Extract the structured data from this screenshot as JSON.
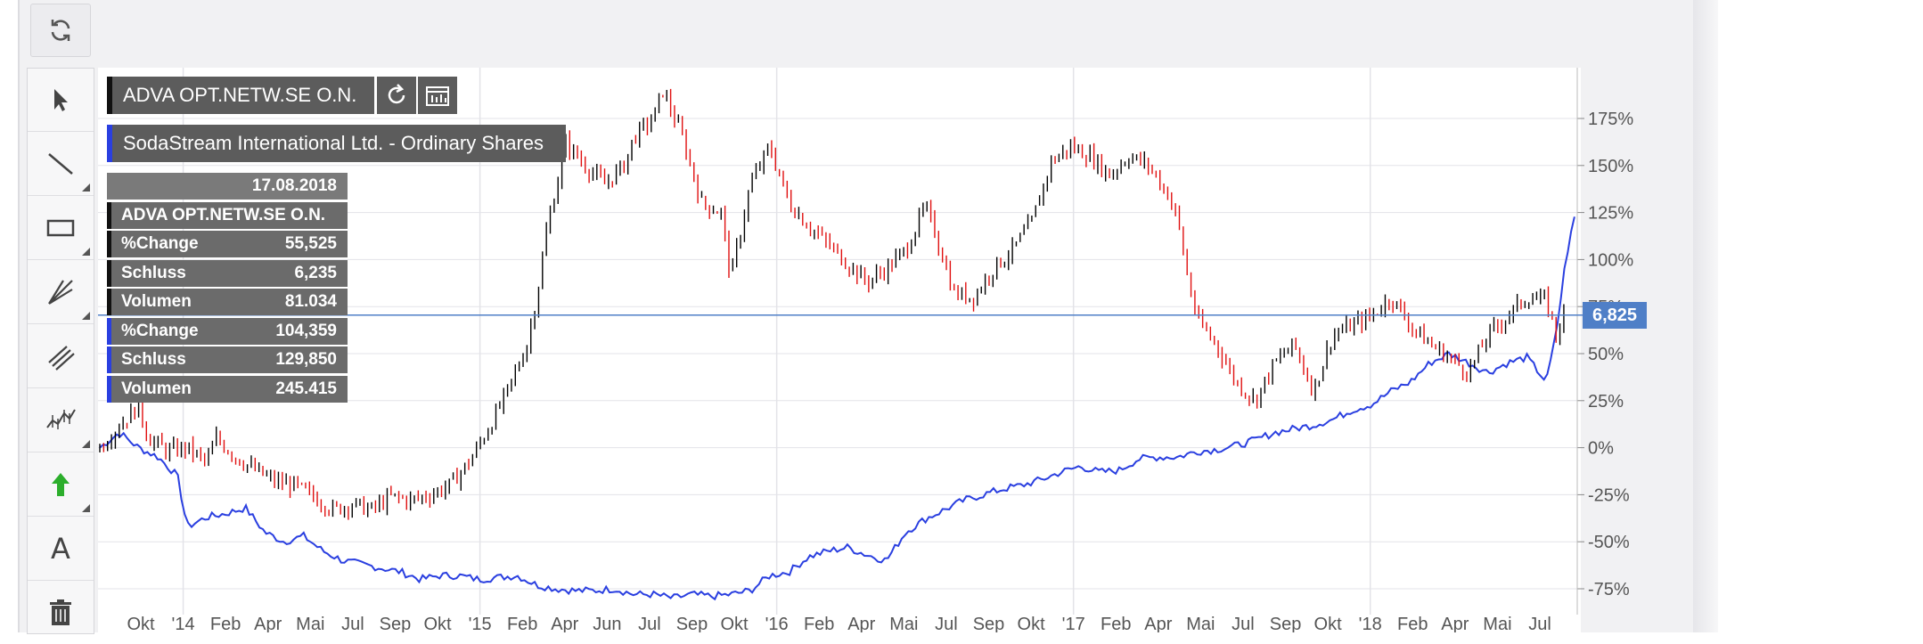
{
  "toolbar": {
    "refresh_icon": "refresh-icon",
    "tools": [
      {
        "name": "pointer-tool",
        "icon": "cursor-arrow-icon"
      },
      {
        "name": "line-tool",
        "icon": "line-icon"
      },
      {
        "name": "rectangle-tool",
        "icon": "rectangle-icon"
      },
      {
        "name": "fan-tool",
        "icon": "fan-lines-icon"
      },
      {
        "name": "parallel-lines-tool",
        "icon": "parallel-lines-icon"
      },
      {
        "name": "chart-type-tool",
        "icon": "candlestick-icon"
      },
      {
        "name": "arrow-tool",
        "icon": "green-arrow-up-icon"
      },
      {
        "name": "text-tool",
        "icon": "letter-a-icon",
        "label": "A"
      },
      {
        "name": "delete-tool",
        "icon": "trash-icon"
      }
    ]
  },
  "badges": {
    "primary": "ADVA OPT.NETW.SE O.N.",
    "secondary": "SodaStream International Ltd. - Ordinary Shares"
  },
  "info": {
    "date": "17.08.2018",
    "title": "ADVA OPT.NETW.SE O.N.",
    "rows_primary": [
      {
        "label": "%Change",
        "value": "55,525"
      },
      {
        "label": "Schluss",
        "value": "6,235"
      },
      {
        "label": "Volumen",
        "value": "81.034"
      }
    ],
    "rows_secondary": [
      {
        "label": "%Change",
        "value": "104,359"
      },
      {
        "label": "Schluss",
        "value": "129,850"
      },
      {
        "label": "Volumen",
        "value": "245.415"
      }
    ]
  },
  "last_price": "6,825",
  "colors": {
    "primary": "#1a1a1a",
    "secondary": "#2a3fe0",
    "up": "#000000",
    "down": "#e01010",
    "accent": "#4f7fc7"
  },
  "chart_data": {
    "type": "line",
    "ylim": [
      -85,
      200
    ],
    "y_ticks": [
      "175%",
      "150%",
      "125%",
      "100%",
      "75%",
      "50%",
      "25%",
      "0%",
      "-25%",
      "-50%",
      "-75%"
    ],
    "x_ticks": [
      "Okt",
      "'14",
      "Feb",
      "Apr",
      "Mai",
      "Jul",
      "Sep",
      "Okt",
      "'15",
      "Feb",
      "Apr",
      "Jun",
      "Jul",
      "Sep",
      "Okt",
      "'16",
      "Feb",
      "Apr",
      "Mai",
      "Jul",
      "Sep",
      "Okt",
      "'17",
      "Feb",
      "Apr",
      "Mai",
      "Jul",
      "Sep",
      "Okt",
      "'18",
      "Feb",
      "Apr",
      "Mai",
      "Jul"
    ],
    "series": [
      {
        "name": "ADVA OPT.NETW.SE O.N.",
        "style": "candles",
        "points": [
          [
            0,
            0
          ],
          [
            2,
            12
          ],
          [
            4,
            22
          ],
          [
            5,
            5
          ],
          [
            7,
            -2
          ],
          [
            9,
            0
          ],
          [
            11,
            -8
          ],
          [
            12,
            5
          ],
          [
            14,
            -5
          ],
          [
            16,
            -12
          ],
          [
            18,
            -18
          ],
          [
            20,
            -20
          ],
          [
            22,
            -26
          ],
          [
            24,
            -33
          ],
          [
            26,
            -30
          ],
          [
            28,
            -33
          ],
          [
            30,
            -26
          ],
          [
            32,
            -28
          ],
          [
            34,
            -25
          ],
          [
            36,
            -20
          ],
          [
            38,
            -8
          ],
          [
            40,
            10
          ],
          [
            42,
            30
          ],
          [
            44,
            55
          ],
          [
            45,
            80
          ],
          [
            46,
            115
          ],
          [
            48,
            162
          ],
          [
            50,
            150
          ],
          [
            52,
            140
          ],
          [
            54,
            150
          ],
          [
            55,
            165
          ],
          [
            57,
            175
          ],
          [
            58,
            190
          ],
          [
            60,
            165
          ],
          [
            62,
            130
          ],
          [
            64,
            125
          ],
          [
            65,
            90
          ],
          [
            67,
            140
          ],
          [
            69,
            160
          ],
          [
            71,
            130
          ],
          [
            73,
            118
          ],
          [
            75,
            108
          ],
          [
            77,
            98
          ],
          [
            79,
            88
          ],
          [
            81,
            95
          ],
          [
            83,
            105
          ],
          [
            85,
            128
          ],
          [
            86,
            115
          ],
          [
            88,
            82
          ],
          [
            90,
            80
          ],
          [
            92,
            95
          ],
          [
            94,
            105
          ],
          [
            96,
            120
          ],
          [
            98,
            152
          ],
          [
            100,
            160
          ],
          [
            102,
            155
          ],
          [
            104,
            145
          ],
          [
            106,
            155
          ],
          [
            108,
            150
          ],
          [
            110,
            135
          ],
          [
            111,
            122
          ],
          [
            112,
            92
          ],
          [
            113,
            68
          ],
          [
            115,
            55
          ],
          [
            117,
            35
          ],
          [
            119,
            25
          ],
          [
            121,
            45
          ],
          [
            123,
            55
          ],
          [
            125,
            30
          ],
          [
            127,
            60
          ],
          [
            129,
            65
          ],
          [
            131,
            70
          ],
          [
            133,
            80
          ],
          [
            135,
            65
          ],
          [
            137,
            55
          ],
          [
            139,
            48
          ],
          [
            141,
            40
          ],
          [
            143,
            60
          ],
          [
            145,
            70
          ],
          [
            147,
            80
          ],
          [
            149,
            78
          ],
          [
            150,
            60
          ],
          [
            151,
            75
          ]
        ]
      },
      {
        "name": "SodaStream International Ltd. - Ordinary Shares",
        "style": "line",
        "points": [
          [
            0,
            0
          ],
          [
            2,
            8
          ],
          [
            4,
            0
          ],
          [
            6,
            -5
          ],
          [
            8,
            -15
          ],
          [
            9,
            -42
          ],
          [
            11,
            -37
          ],
          [
            13,
            -35
          ],
          [
            15,
            -32
          ],
          [
            17,
            -45
          ],
          [
            19,
            -50
          ],
          [
            21,
            -47
          ],
          [
            23,
            -55
          ],
          [
            25,
            -60
          ],
          [
            27,
            -62
          ],
          [
            29,
            -64
          ],
          [
            31,
            -66
          ],
          [
            33,
            -70
          ],
          [
            35,
            -68
          ],
          [
            37,
            -68
          ],
          [
            39,
            -70
          ],
          [
            41,
            -69
          ],
          [
            43,
            -68
          ],
          [
            45,
            -73
          ],
          [
            47,
            -75
          ],
          [
            49,
            -76
          ],
          [
            51,
            -76
          ],
          [
            53,
            -75
          ],
          [
            55,
            -78
          ],
          [
            57,
            -78
          ],
          [
            59,
            -80
          ],
          [
            61,
            -78
          ],
          [
            63,
            -79
          ],
          [
            65,
            -78
          ],
          [
            67,
            -76
          ],
          [
            69,
            -68
          ],
          [
            71,
            -66
          ],
          [
            73,
            -58
          ],
          [
            75,
            -55
          ],
          [
            77,
            -53
          ],
          [
            79,
            -57
          ],
          [
            81,
            -60
          ],
          [
            83,
            -45
          ],
          [
            85,
            -38
          ],
          [
            87,
            -33
          ],
          [
            89,
            -28
          ],
          [
            91,
            -25
          ],
          [
            93,
            -22
          ],
          [
            95,
            -20
          ],
          [
            97,
            -17
          ],
          [
            99,
            -13
          ],
          [
            101,
            -10
          ],
          [
            103,
            -13
          ],
          [
            105,
            -12
          ],
          [
            107,
            -6
          ],
          [
            109,
            -5
          ],
          [
            111,
            -5
          ],
          [
            113,
            -2
          ],
          [
            115,
            -1
          ],
          [
            117,
            1
          ],
          [
            119,
            4
          ],
          [
            121,
            8
          ],
          [
            123,
            10
          ],
          [
            125,
            12
          ],
          [
            127,
            15
          ],
          [
            129,
            20
          ],
          [
            131,
            23
          ],
          [
            133,
            30
          ],
          [
            135,
            35
          ],
          [
            137,
            45
          ],
          [
            139,
            50
          ],
          [
            141,
            45
          ],
          [
            143,
            40
          ],
          [
            145,
            45
          ],
          [
            147,
            48
          ],
          [
            149,
            35
          ],
          [
            150,
            60
          ],
          [
            151,
            100
          ],
          [
            152,
            125
          ]
        ]
      }
    ]
  }
}
